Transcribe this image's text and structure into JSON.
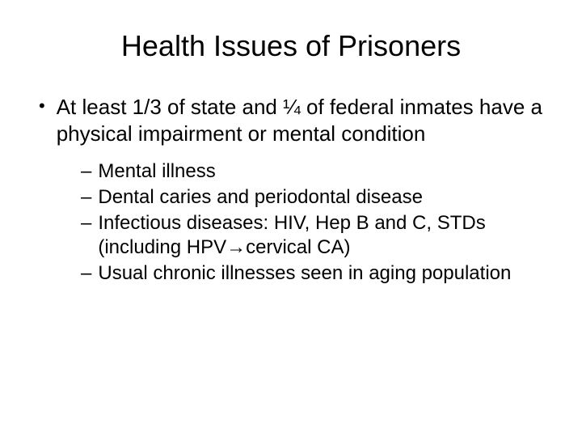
{
  "slide": {
    "title": "Health Issues of Prisoners",
    "background_color": "#ffffff",
    "text_color": "#000000",
    "title_fontsize": 36,
    "body_fontsize": 26,
    "sub_fontsize": 24,
    "main_bullet": {
      "marker": "•",
      "text": "At least 1/3 of state and ¼ of federal inmates have a physical impairment or mental condition"
    },
    "sub_bullets": [
      {
        "marker": "–",
        "text": "Mental illness"
      },
      {
        "marker": "–",
        "text": "Dental caries and periodontal disease"
      },
      {
        "marker": "–",
        "text": "Infectious diseases: HIV, Hep B and C, STDs (including HPV→cervical CA)"
      },
      {
        "marker": "–",
        "text": "Usual chronic illnesses seen in aging population"
      }
    ]
  }
}
